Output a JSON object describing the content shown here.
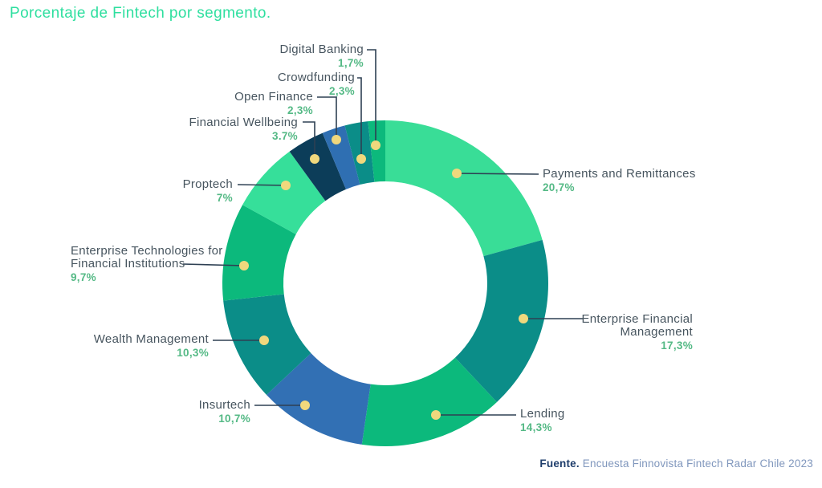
{
  "chart_data": {
    "type": "pie",
    "variant": "donut",
    "title": "Porcentaje de Fintech por segmento.",
    "unit": "%",
    "start_angle_deg": 0,
    "direction": "clockwise",
    "legend_position": "callouts-around-donut",
    "grid": false,
    "segments": [
      {
        "key": "payments",
        "label": "Payments and Remittances",
        "value": 20.7,
        "display": "20,7%",
        "color": "#39DD97"
      },
      {
        "key": "efm",
        "label": "Enterprise Financial\nManagement",
        "value": 17.3,
        "display": "17,3%",
        "color": "#0B8D88"
      },
      {
        "key": "lending",
        "label": "Lending",
        "value": 14.3,
        "display": "14,3%",
        "color": "#0CB97C"
      },
      {
        "key": "insurtech",
        "label": "Insurtech",
        "value": 10.7,
        "display": "10,7%",
        "color": "#3270B4"
      },
      {
        "key": "wealth",
        "label": "Wealth Management",
        "value": 10.3,
        "display": "10,3%",
        "color": "#0B8D88"
      },
      {
        "key": "enttech",
        "label": "Enterprise Technologies for\nFinancial Institutions",
        "value": 9.7,
        "display": "9,7%",
        "color": "#0CB97C"
      },
      {
        "key": "proptech",
        "label": "Proptech",
        "value": 7,
        "display": "7%",
        "color": "#36DF9A"
      },
      {
        "key": "wellbeing",
        "label": "Financial Wellbeing",
        "value": 3.7,
        "display": "3.7%",
        "color": "#0C3D59"
      },
      {
        "key": "openfinance",
        "label": "Open Finance",
        "value": 2.3,
        "display": "2,3%",
        "color": "#2F6FB2"
      },
      {
        "key": "crowdfunding",
        "label": "Crowdfunding",
        "value": 2.3,
        "display": "2,3%",
        "color": "#0B8D88"
      },
      {
        "key": "digitalbanking",
        "label": "Digital Banking",
        "value": 1.7,
        "display": "1,7%",
        "color": "#0CB97C"
      }
    ]
  },
  "footer": {
    "prefix": "Fuente.",
    "text": "Encuesta Finnovista Fintech Radar Chile 2023"
  },
  "colors": {
    "title": "#2EDF9F",
    "label_text": "#47555F",
    "pct_text": "#54B985",
    "leader_line": "#2E4053",
    "dot": "#F0D87D",
    "source_prefix": "#1E3D6B",
    "source_text": "#8097BD",
    "background": "#FFFFFF"
  }
}
